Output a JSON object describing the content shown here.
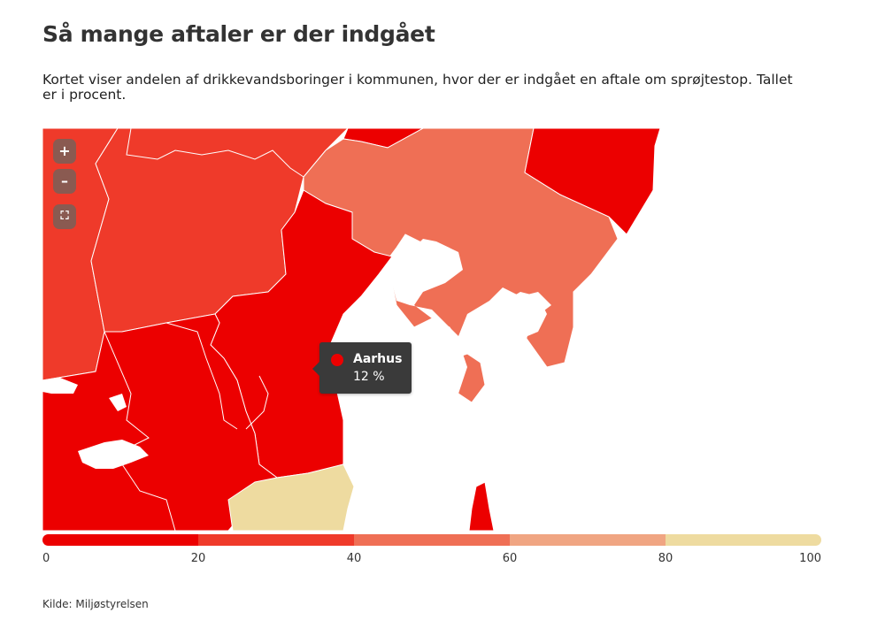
{
  "title": "Så mange aftaler er der indgået",
  "subtitle": "Kortet viser andelen af drikkevandsboringer i kommunen, hvor der er indgået en aftale om sprøjtestop. Tallet er i procent.",
  "controls": {
    "zoom_in": "+",
    "zoom_out": "–",
    "fullscreen": "⛶"
  },
  "tooltip": {
    "name": "Aarhus",
    "value": "12 %",
    "color": "#ec0000"
  },
  "legend": {
    "colors": [
      "#ec0000",
      "#ef3a2a",
      "#ef6f55",
      "#f0a582",
      "#eedba0"
    ],
    "ticks": [
      "0",
      "20",
      "40",
      "60",
      "80",
      "100"
    ]
  },
  "source": "Kilde: Miljøstyrelsen"
}
